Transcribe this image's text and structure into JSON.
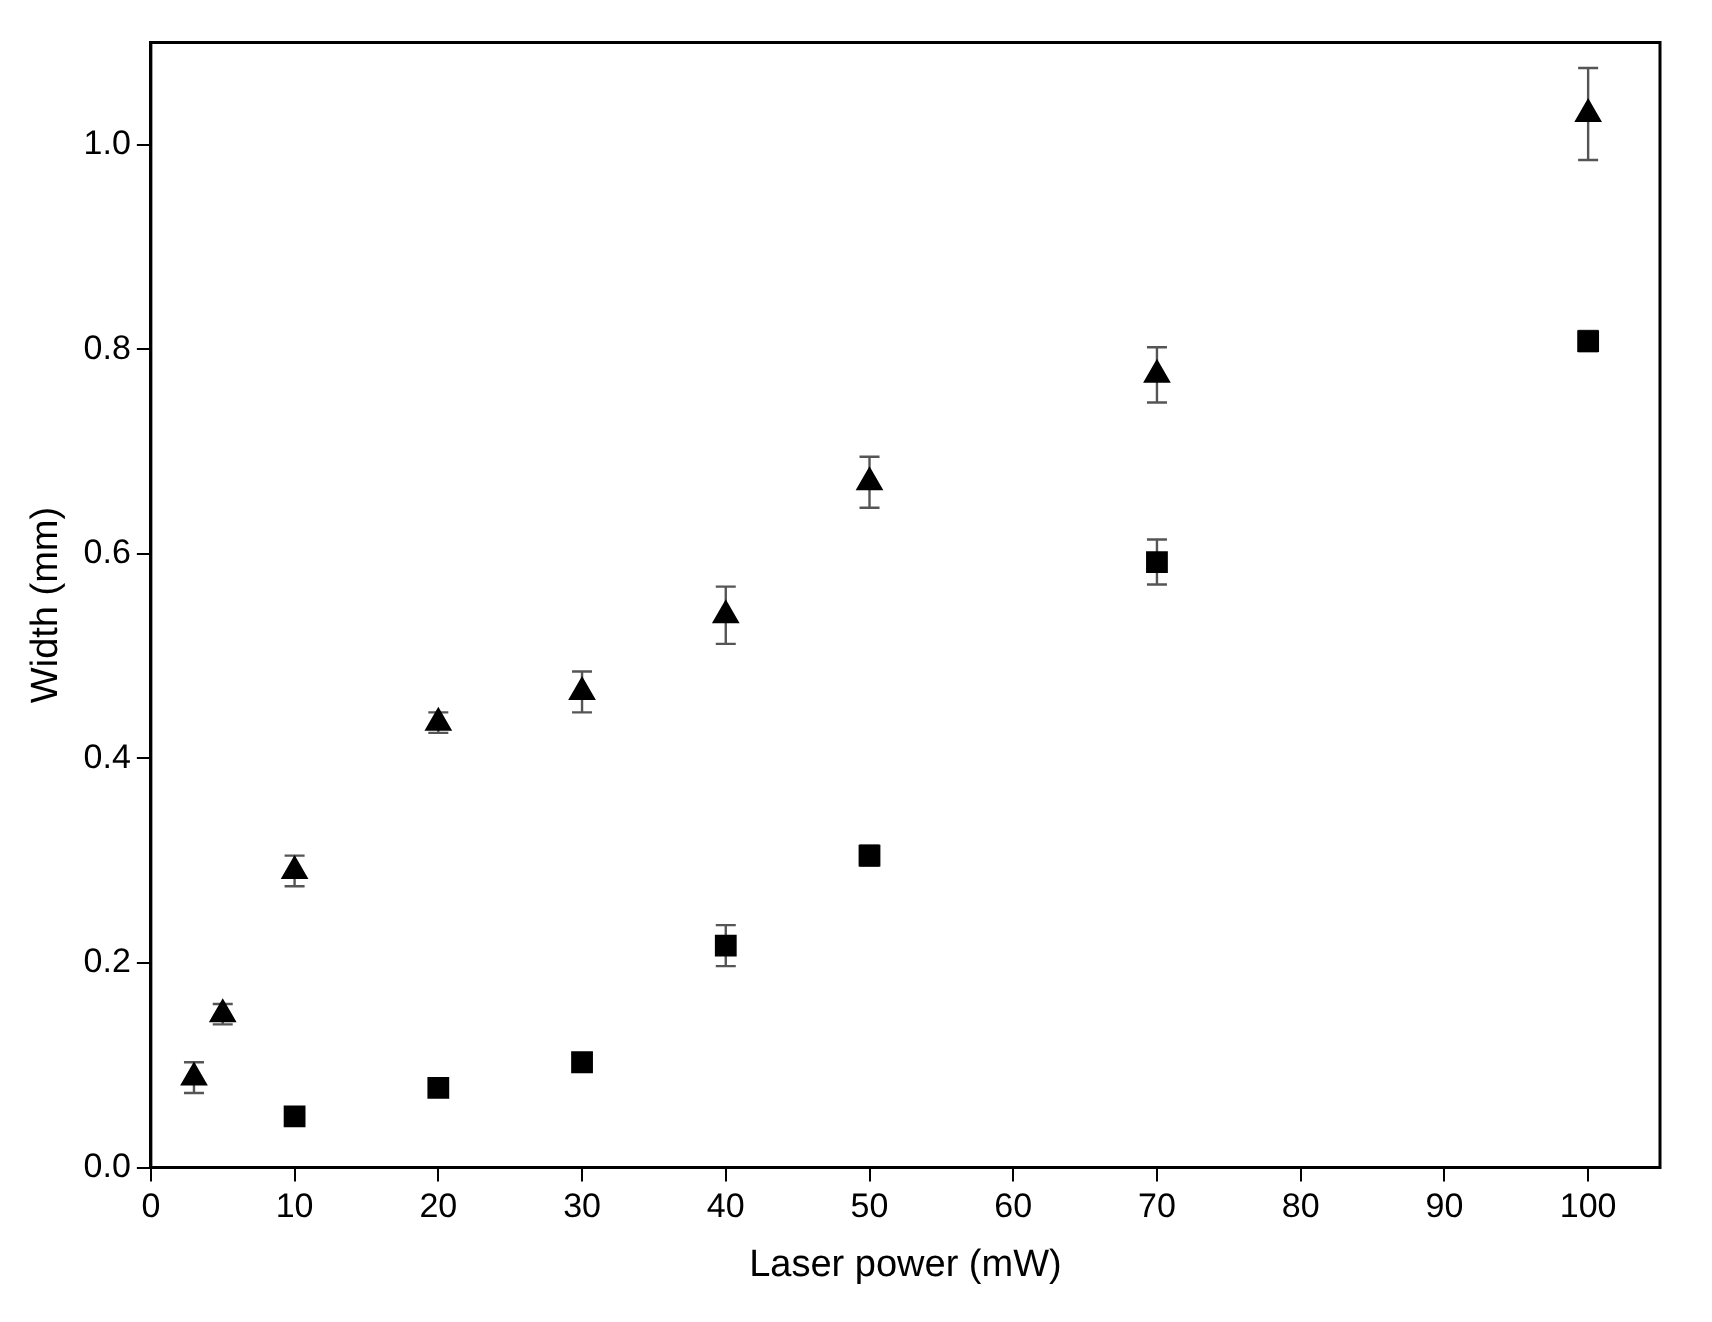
{
  "chart_data": {
    "type": "scatter",
    "xlabel": "Laser power (mW)",
    "ylabel": "Width (mm)",
    "xlim": [
      0,
      105
    ],
    "xticks": [
      0,
      10,
      20,
      30,
      40,
      50,
      60,
      70,
      80,
      90,
      100
    ],
    "ylim": [
      0,
      1.1
    ],
    "yticks": [
      {
        "value": 0,
        "label": "0.0"
      },
      0.2,
      0.4,
      0.6,
      0.8,
      {
        "value": 1,
        "label": "1.0"
      }
    ],
    "grid": false,
    "legend": false,
    "series": [
      {
        "color": "#000000",
        "marker": "triangle",
        "x": [
          3,
          5,
          10,
          20,
          30,
          40,
          50,
          70,
          100
        ],
        "values": [
          0.088,
          0.15,
          0.29,
          0.435,
          0.465,
          0.54,
          0.67,
          0.775,
          1.03
        ],
        "errors": [
          0.015,
          0.01,
          0.015,
          0.01,
          0.02,
          0.028,
          0.025,
          0.027,
          0.045
        ]
      },
      {
        "color": "#000000",
        "marker": "square",
        "x": [
          10,
          20,
          30,
          40,
          50,
          70,
          100
        ],
        "values": [
          0.05,
          0.078,
          0.103,
          0.217,
          0.305,
          0.592,
          0.808
        ],
        "errors": [
          0.005,
          0.005,
          0.005,
          0.02,
          0.01,
          0.022,
          0.01
        ]
      }
    ]
  }
}
